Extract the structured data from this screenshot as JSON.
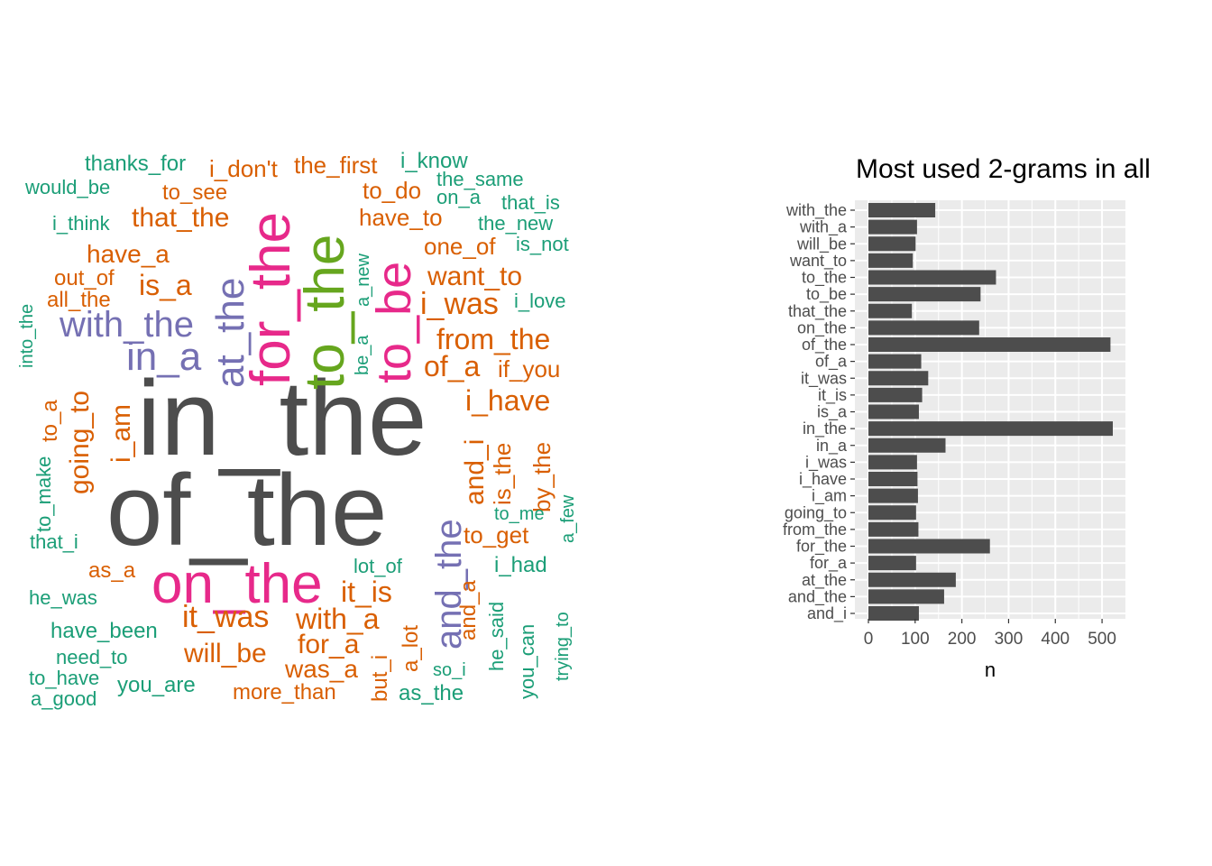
{
  "wordcloud": {
    "colors": {
      "dark": "#4d4d4d",
      "magenta": "#e7298a",
      "green": "#66a61e",
      "purple": "#7570b3",
      "orange": "#d95f02",
      "teal": "#1b9e77"
    },
    "words": [
      {
        "text": "in_the",
        "color": "dark",
        "size": 118
      },
      {
        "text": "of_the",
        "color": "dark",
        "size": 112
      },
      {
        "text": "on_the",
        "color": "magenta",
        "size": 62
      },
      {
        "text": "for_the",
        "color": "magenta",
        "size": 62
      },
      {
        "text": "to_be",
        "color": "magenta",
        "size": 54
      },
      {
        "text": "to_the",
        "color": "green",
        "size": 62
      },
      {
        "text": "at_the",
        "color": "purple",
        "size": 44
      },
      {
        "text": "in_a",
        "color": "purple",
        "size": 44
      },
      {
        "text": "with_the",
        "color": "purple",
        "size": 40
      },
      {
        "text": "and_the",
        "color": "purple",
        "size": 40
      },
      {
        "text": "i_was",
        "color": "orange",
        "size": 34
      },
      {
        "text": "from_the",
        "color": "orange",
        "size": 32
      },
      {
        "text": "want_to",
        "color": "orange",
        "size": 30
      },
      {
        "text": "of_a",
        "color": "orange",
        "size": 32
      },
      {
        "text": "i_have",
        "color": "orange",
        "size": 32
      },
      {
        "text": "is_a",
        "color": "orange",
        "size": 32
      },
      {
        "text": "have_a",
        "color": "orange",
        "size": 28
      },
      {
        "text": "that_the",
        "color": "orange",
        "size": 30
      },
      {
        "text": "it_was",
        "color": "orange",
        "size": 34
      },
      {
        "text": "with_a",
        "color": "orange",
        "size": 32
      },
      {
        "text": "will_be",
        "color": "orange",
        "size": 30
      },
      {
        "text": "for_a",
        "color": "orange",
        "size": 30
      },
      {
        "text": "was_a",
        "color": "orange",
        "size": 28
      },
      {
        "text": "it_is",
        "color": "orange",
        "size": 32
      },
      {
        "text": "i_am",
        "color": "orange",
        "size": 30
      },
      {
        "text": "going_to",
        "color": "orange",
        "size": 30
      },
      {
        "text": "and_i",
        "color": "orange",
        "size": 30
      },
      {
        "text": "is_the",
        "color": "orange",
        "size": 26
      },
      {
        "text": "by_the",
        "color": "orange",
        "size": 26
      },
      {
        "text": "to_get",
        "color": "orange",
        "size": 26
      },
      {
        "text": "if_you",
        "color": "orange",
        "size": 26
      },
      {
        "text": "one_of",
        "color": "orange",
        "size": 26
      },
      {
        "text": "have_to",
        "color": "orange",
        "size": 26
      },
      {
        "text": "to_do",
        "color": "orange",
        "size": 26
      },
      {
        "text": "the_first",
        "color": "orange",
        "size": 26
      },
      {
        "text": "i_don't",
        "color": "orange",
        "size": 26
      },
      {
        "text": "to_see",
        "color": "orange",
        "size": 24
      },
      {
        "text": "out_of",
        "color": "orange",
        "size": 24
      },
      {
        "text": "all_the",
        "color": "orange",
        "size": 24
      },
      {
        "text": "to_a",
        "color": "orange",
        "size": 24
      },
      {
        "text": "as_a",
        "color": "orange",
        "size": 24
      },
      {
        "text": "more_than",
        "color": "orange",
        "size": 24
      },
      {
        "text": "but_i",
        "color": "orange",
        "size": 24
      },
      {
        "text": "a_lot",
        "color": "orange",
        "size": 24
      },
      {
        "text": "and_a",
        "color": "orange",
        "size": 24
      },
      {
        "text": "thanks_for",
        "color": "teal",
        "size": 24
      },
      {
        "text": "would_be",
        "color": "teal",
        "size": 22
      },
      {
        "text": "i_think",
        "color": "teal",
        "size": 22
      },
      {
        "text": "into_the",
        "color": "teal",
        "size": 20
      },
      {
        "text": "to_make",
        "color": "teal",
        "size": 22
      },
      {
        "text": "that_i",
        "color": "teal",
        "size": 22
      },
      {
        "text": "he_was",
        "color": "teal",
        "size": 22
      },
      {
        "text": "have_been",
        "color": "teal",
        "size": 24
      },
      {
        "text": "need_to",
        "color": "teal",
        "size": 22
      },
      {
        "text": "to_have",
        "color": "teal",
        "size": 22
      },
      {
        "text": "a_good",
        "color": "teal",
        "size": 22
      },
      {
        "text": "you_are",
        "color": "teal",
        "size": 24
      },
      {
        "text": "i_know",
        "color": "teal",
        "size": 24
      },
      {
        "text": "the_same",
        "color": "teal",
        "size": 22
      },
      {
        "text": "on_a",
        "color": "teal",
        "size": 22
      },
      {
        "text": "that_is",
        "color": "teal",
        "size": 22
      },
      {
        "text": "the_new",
        "color": "teal",
        "size": 22
      },
      {
        "text": "is_not",
        "color": "teal",
        "size": 22
      },
      {
        "text": "i_love",
        "color": "teal",
        "size": 22
      },
      {
        "text": "be_a",
        "color": "teal",
        "size": 20
      },
      {
        "text": "a_new",
        "color": "teal",
        "size": 20
      },
      {
        "text": "to_me",
        "color": "teal",
        "size": 20
      },
      {
        "text": "a_few",
        "color": "teal",
        "size": 20
      },
      {
        "text": "lot_of",
        "color": "teal",
        "size": 22
      },
      {
        "text": "i_had",
        "color": "teal",
        "size": 24
      },
      {
        "text": "he_said",
        "color": "teal",
        "size": 22
      },
      {
        "text": "so_i",
        "color": "teal",
        "size": 20
      },
      {
        "text": "you_can",
        "color": "teal",
        "size": 22
      },
      {
        "text": "trying_to",
        "color": "teal",
        "size": 20
      },
      {
        "text": "as_the",
        "color": "teal",
        "size": 24
      }
    ]
  },
  "chart_data": {
    "type": "bar",
    "orientation": "horizontal",
    "title": "Most used 2-grams in all",
    "xlabel": "n",
    "ylabel": "",
    "xlim": [
      0,
      550
    ],
    "x_ticks": [
      0,
      100,
      200,
      300,
      400,
      500
    ],
    "grid": true,
    "categories": [
      "with_the",
      "with_a",
      "will_be",
      "want_to",
      "to_the",
      "to_be",
      "that_the",
      "on_the",
      "of_the",
      "of_a",
      "it_was",
      "it_is",
      "is_a",
      "in_the",
      "in_a",
      "i_was",
      "i_have",
      "i_am",
      "going_to",
      "from_the",
      "for_the",
      "for_a",
      "at_the",
      "and_the",
      "and_i"
    ],
    "values": [
      143,
      104,
      101,
      95,
      273,
      240,
      93,
      237,
      518,
      113,
      128,
      115,
      108,
      523,
      165,
      104,
      105,
      106,
      102,
      107,
      260,
      102,
      187,
      162,
      108
    ],
    "colors": {
      "bar": "#4d4d4d",
      "panel": "#ebebeb",
      "grid": "#ffffff",
      "text": "#4d4d4d",
      "title": "#000000"
    }
  }
}
